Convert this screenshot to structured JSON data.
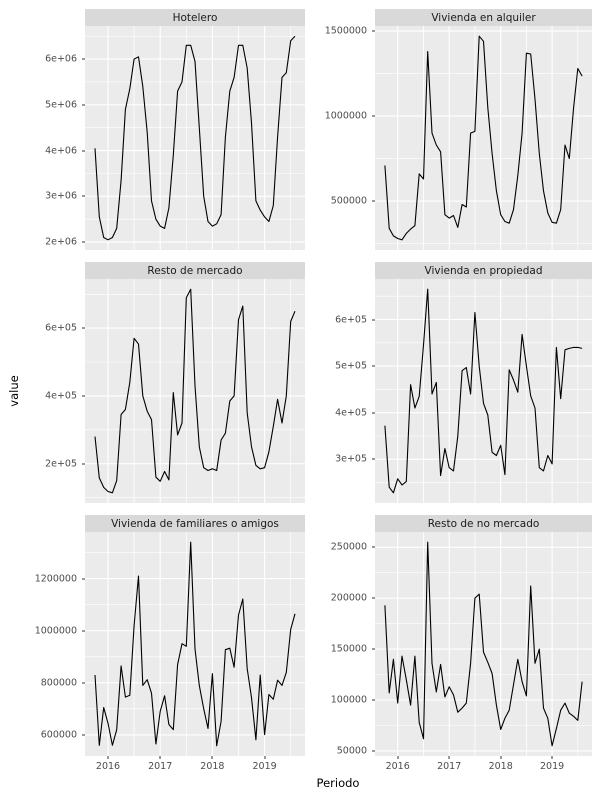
{
  "figure": {
    "xlabel": "Periodo",
    "ylabel": "value",
    "background": "#FFFFFF",
    "panel_background": "#EBEBEB",
    "strip_background": "#D9D9D9",
    "grid_color": "#FFFFFF",
    "line_color": "#000000",
    "axis_text_color": "#4D4D4D",
    "x_tick_values": [
      2016,
      2017,
      2018,
      2019
    ],
    "x_tick_labels": [
      "2016",
      "2017",
      "2018",
      "2019"
    ]
  },
  "x_months": [
    "2015-10",
    "2015-11",
    "2015-12",
    "2016-01",
    "2016-02",
    "2016-03",
    "2016-04",
    "2016-05",
    "2016-06",
    "2016-07",
    "2016-08",
    "2016-09",
    "2016-10",
    "2016-11",
    "2016-12",
    "2017-01",
    "2017-02",
    "2017-03",
    "2017-04",
    "2017-05",
    "2017-06",
    "2017-07",
    "2017-08",
    "2017-09",
    "2017-10",
    "2017-11",
    "2017-12",
    "2018-01",
    "2018-02",
    "2018-03",
    "2018-04",
    "2018-05",
    "2018-06",
    "2018-07",
    "2018-08",
    "2018-09",
    "2018-10",
    "2018-11",
    "2018-12",
    "2019-01",
    "2019-02",
    "2019-03",
    "2019-04",
    "2019-05",
    "2019-06",
    "2019-07",
    "2019-08"
  ],
  "chart_data": [
    {
      "type": "line",
      "title": "Hotelero",
      "ylim": [
        1827500,
        6722500
      ],
      "yticks": [
        2000000,
        3000000,
        4000000,
        5000000,
        6000000
      ],
      "ytick_labels": [
        "2e+06",
        "3e+06",
        "4e+06",
        "5e+06",
        "6e+06"
      ],
      "yminor": [
        2500000,
        3500000,
        4500000,
        5500000,
        6500000
      ],
      "values": [
        4050000,
        2550000,
        2100000,
        2050000,
        2100000,
        2300000,
        3350000,
        4900000,
        5350000,
        6000000,
        6050000,
        5400000,
        4400000,
        2900000,
        2500000,
        2350000,
        2300000,
        2750000,
        3900000,
        5300000,
        5500000,
        6300000,
        6300000,
        5950000,
        4500000,
        3000000,
        2450000,
        2350000,
        2400000,
        2600000,
        4300000,
        5300000,
        5600000,
        6300000,
        6300000,
        5800000,
        4600000,
        2900000,
        2700000,
        2550000,
        2450000,
        2800000,
        4300000,
        5600000,
        5700000,
        6400000,
        6500000
      ]
    },
    {
      "type": "line",
      "title": "Vivienda en alquiler",
      "ylim": [
        212100,
        1529900
      ],
      "yticks": [
        500000,
        1000000,
        1500000
      ],
      "ytick_labels": [
        "500000",
        "1000000",
        "1500000"
      ],
      "yminor": [
        250000,
        750000,
        1250000
      ],
      "values": [
        710000,
        340000,
        295000,
        280000,
        272000,
        310000,
        335000,
        355000,
        660000,
        630000,
        1380000,
        900000,
        830000,
        790000,
        420000,
        400000,
        415000,
        345000,
        480000,
        465000,
        900000,
        910000,
        1470000,
        1440000,
        1050000,
        780000,
        560000,
        420000,
        380000,
        370000,
        450000,
        650000,
        900000,
        1370000,
        1365000,
        1100000,
        780000,
        560000,
        430000,
        375000,
        370000,
        450000,
        830000,
        750000,
        1050000,
        1280000,
        1235000
      ]
    },
    {
      "type": "line",
      "title": "Resto de mercado",
      "ylim": [
        83950,
        745050
      ],
      "yticks": [
        200000,
        400000,
        600000
      ],
      "ytick_labels": [
        "2e+05",
        "4e+05",
        "6e+05"
      ],
      "yminor": [
        100000,
        300000,
        500000,
        700000
      ],
      "values": [
        280000,
        158000,
        130000,
        118000,
        114000,
        150000,
        345000,
        360000,
        440000,
        570000,
        553000,
        400000,
        355000,
        330000,
        160000,
        148000,
        177000,
        152000,
        410000,
        285000,
        320000,
        690000,
        715000,
        430000,
        250000,
        188000,
        180000,
        185000,
        180000,
        270000,
        290000,
        385000,
        400000,
        625000,
        665000,
        350000,
        250000,
        195000,
        185000,
        188000,
        235000,
        310000,
        390000,
        320000,
        400000,
        620000,
        650000
      ]
    },
    {
      "type": "line",
      "title": "Vivienda en propiedad",
      "ylim": [
        206150,
        686850
      ],
      "yticks": [
        300000,
        400000,
        500000,
        600000
      ],
      "ytick_labels": [
        "3e+05",
        "4e+05",
        "5e+05",
        "6e+05"
      ],
      "yminor": [
        250000,
        350000,
        450000,
        550000,
        650000
      ],
      "values": [
        372000,
        240000,
        228000,
        258000,
        245000,
        252000,
        460000,
        410000,
        435000,
        545000,
        665000,
        440000,
        465000,
        265000,
        323000,
        282000,
        275000,
        350000,
        490000,
        497000,
        440000,
        615000,
        500000,
        420000,
        395000,
        315000,
        308000,
        330000,
        267000,
        492000,
        470000,
        444000,
        568000,
        500000,
        436000,
        410000,
        282000,
        275000,
        308000,
        290000,
        540000,
        430000,
        535000,
        538000,
        540000,
        540000,
        538000
      ]
    },
    {
      "type": "line",
      "title": "Vivienda de familiares o amigos",
      "ylim": [
        518900,
        1379100
      ],
      "yticks": [
        600000,
        800000,
        1000000,
        1200000
      ],
      "ytick_labels": [
        "600000",
        "800000",
        "1000000",
        "1200000"
      ],
      "yminor": [
        700000,
        900000,
        1100000,
        1300000
      ],
      "values": [
        830000,
        560000,
        705000,
        645000,
        560000,
        620000,
        865000,
        745000,
        752000,
        1020000,
        1210000,
        790000,
        812000,
        760000,
        565000,
        690000,
        750000,
        640000,
        620000,
        870000,
        950000,
        940000,
        1340000,
        930000,
        790000,
        700000,
        625000,
        835000,
        558000,
        652000,
        927000,
        933000,
        860000,
        1060000,
        1122000,
        854000,
        743000,
        581000,
        830000,
        601000,
        755000,
        737000,
        810000,
        790000,
        840000,
        1005000,
        1065000
      ]
    },
    {
      "type": "line",
      "title": "Resto de no mercado",
      "ylim": [
        45000,
        265000
      ],
      "yticks": [
        50000,
        100000,
        150000,
        200000,
        250000
      ],
      "ytick_labels": [
        "50000",
        "100000",
        "150000",
        "200000",
        "250000"
      ],
      "yminor": [
        75000,
        125000,
        175000,
        225000
      ],
      "values": [
        193000,
        107000,
        140000,
        97000,
        143000,
        120000,
        95000,
        143000,
        78000,
        62000,
        255000,
        136000,
        108000,
        135000,
        103000,
        113000,
        105000,
        88000,
        92000,
        97000,
        136000,
        200000,
        204000,
        147000,
        137000,
        126000,
        95000,
        71000,
        82000,
        90000,
        115000,
        140000,
        118000,
        104000,
        212000,
        136000,
        150000,
        92000,
        82000,
        55000,
        72000,
        90000,
        97000,
        87000,
        84000,
        80000,
        118000
      ]
    }
  ]
}
